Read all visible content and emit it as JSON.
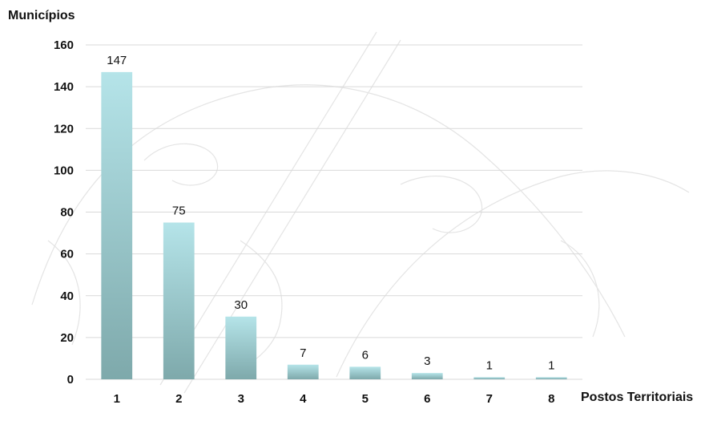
{
  "chart_data": {
    "type": "bar",
    "ylabel": "Municípios",
    "xlabel": "Postos Territoriais",
    "categories": [
      "1",
      "2",
      "3",
      "4",
      "5",
      "6",
      "7",
      "8"
    ],
    "values": [
      147,
      75,
      30,
      7,
      6,
      3,
      1,
      1
    ],
    "data_labels": [
      "147",
      "75",
      "30",
      "7",
      "6",
      "3",
      "1",
      "1"
    ],
    "ylim": [
      0,
      160
    ],
    "yticks": [
      "0",
      "20",
      "40",
      "60",
      "80",
      "100",
      "120",
      "140",
      "160"
    ],
    "grid": true,
    "bar_color_top": "#b5e4e9",
    "bar_color_bottom": "#7ea9ab",
    "grid_color": "#d9d9d9"
  }
}
